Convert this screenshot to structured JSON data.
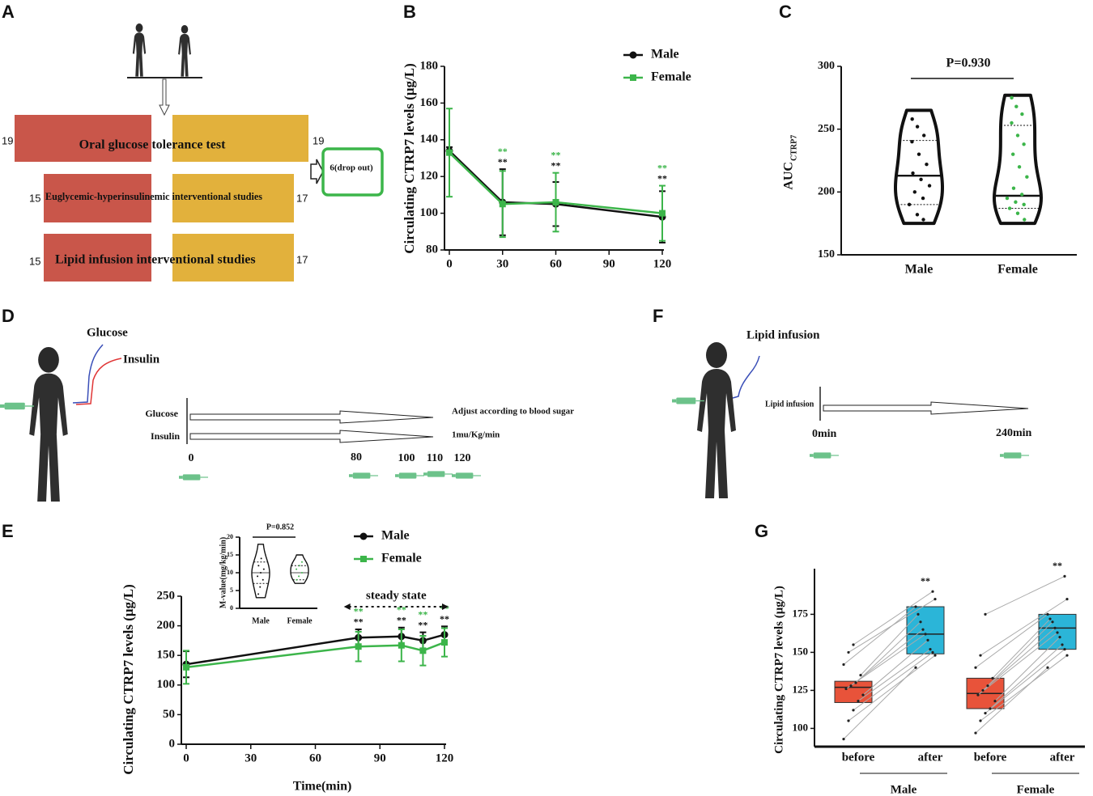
{
  "panel_labels": [
    "A",
    "B",
    "C",
    "D",
    "E",
    "F",
    "G"
  ],
  "diagram_a": {
    "rows": [
      {
        "label": "Oral glucose tolerance test",
        "left": 19,
        "right": 19
      },
      {
        "label": "Euglycemic-hyperinsulinemic interventional studies",
        "left": 15,
        "right": 17
      },
      {
        "label": "Lipid infusion interventional studies",
        "left": 15,
        "right": 17
      }
    ],
    "dropout": "6(drop out)"
  },
  "diagram_d": {
    "curve_labels": [
      "Glucose",
      "Insulin"
    ],
    "arrows": [
      {
        "label": "Glucose",
        "note": "Adjust according to blood sugar"
      },
      {
        "label": "Insulin",
        "note": "1mu/Kg/min"
      }
    ],
    "times": [
      0,
      80,
      100,
      110,
      120
    ]
  },
  "diagram_f": {
    "curve_label": "Lipid infusion",
    "arrow_label": "Lipid infusion",
    "start": "0min",
    "end": "240min"
  },
  "chart_data": [
    {
      "type": "line",
      "ylabel": "Circulating CTRP7 levels (μg/L)",
      "x": [
        0,
        30,
        60,
        120
      ],
      "xlim": [
        0,
        120
      ],
      "xticks": [
        0,
        30,
        60,
        90,
        120
      ],
      "ylim": [
        80,
        180
      ],
      "yticks": [
        80,
        100,
        120,
        140,
        160,
        180
      ],
      "legend": "top-right",
      "series": [
        {
          "name": "Male",
          "color": "#111111",
          "marker": "circle",
          "values": [
            134,
            106,
            105,
            98
          ],
          "errors": [
            2,
            18,
            12,
            14
          ],
          "significance": [
            null,
            "**",
            "**",
            "**"
          ]
        },
        {
          "name": "Female",
          "color": "#3cb54a",
          "marker": "square",
          "values": [
            133,
            105,
            106,
            100
          ],
          "errors": [
            24,
            18,
            16,
            15
          ],
          "significance": [
            null,
            "**",
            "**",
            "**"
          ]
        }
      ]
    },
    {
      "type": "violin",
      "ylabel": "AUC",
      "ylabel_sub": "CTRP7",
      "categories": [
        "Male",
        "Female"
      ],
      "colors": [
        "#111111",
        "#3cb54a"
      ],
      "ylim": [
        150,
        300
      ],
      "yticks": [
        150,
        200,
        250,
        300
      ],
      "p_value": "P=0.930",
      "groups": [
        {
          "range": [
            175,
            265
          ],
          "median": 213,
          "quartiles": [
            190,
            241
          ],
          "points": [
            258,
            252,
            245,
            240,
            230,
            222,
            215,
            210,
            205,
            200,
            195,
            190,
            182,
            178
          ]
        },
        {
          "range": [
            175,
            277
          ],
          "median": 197,
          "quartiles": [
            187,
            253
          ],
          "points": [
            275,
            268,
            262,
            255,
            245,
            238,
            230,
            220,
            212,
            203,
            198,
            195,
            192,
            190,
            187,
            183,
            178
          ]
        }
      ]
    },
    {
      "type": "line",
      "ylabel": "Circulating CTRP7 levels (μg/L)",
      "xlabel": "Time(min)",
      "steady_state": "steady state",
      "x": [
        0,
        80,
        100,
        110,
        120
      ],
      "xlim": [
        0,
        120
      ],
      "xticks": [
        0,
        30,
        60,
        90,
        120
      ],
      "ylim": [
        0,
        250
      ],
      "yticks": [
        0,
        50,
        100,
        150,
        200,
        250
      ],
      "legend": "top-right",
      "series": [
        {
          "name": "Male",
          "color": "#111111",
          "marker": "circle",
          "values": [
            135,
            180,
            182,
            175,
            185
          ],
          "errors": [
            22,
            14,
            15,
            14,
            14
          ],
          "significance": [
            null,
            "**",
            "**",
            "**",
            "**"
          ]
        },
        {
          "name": "Female",
          "color": "#3cb54a",
          "marker": "square",
          "values": [
            130,
            165,
            167,
            158,
            172
          ],
          "errors": [
            28,
            25,
            27,
            25,
            24
          ],
          "significance": [
            null,
            "**",
            "**",
            "**",
            "**"
          ]
        }
      ]
    },
    {
      "type": "violin",
      "ylabel": "M-value(mg/kg/min)",
      "categories": [
        "Male",
        "Female"
      ],
      "colors": [
        "#111111",
        "#3cb54a"
      ],
      "ylim": [
        0,
        20
      ],
      "yticks": [
        0,
        5,
        10,
        15,
        20
      ],
      "p_value": "P=0.852",
      "groups": [
        {
          "range": [
            3,
            18
          ],
          "median": 10,
          "quartiles": [
            7,
            13
          ],
          "points": [
            4,
            6,
            8,
            9,
            10,
            11,
            12,
            14
          ]
        },
        {
          "range": [
            7,
            15
          ],
          "median": 10,
          "quartiles": [
            8,
            12
          ],
          "points": [
            8,
            9,
            10,
            11,
            12,
            13
          ]
        }
      ]
    },
    {
      "type": "box",
      "ylabel": "Circulating CTRP7 levels (μg/L)",
      "categories": [
        "before",
        "after",
        "before",
        "after"
      ],
      "colors": [
        "#e8533a",
        "#2bb5d8",
        "#e8533a",
        "#2bb5d8"
      ],
      "ylim": [
        88,
        205
      ],
      "yticks": [
        100,
        125,
        150,
        175
      ],
      "boxes": [
        {
          "quartiles": [
            117,
            131
          ],
          "median": 127
        },
        {
          "quartiles": [
            149,
            180
          ],
          "median": 162
        },
        {
          "quartiles": [
            113,
            133
          ],
          "median": 123
        },
        {
          "quartiles": [
            152,
            175
          ],
          "median": 166
        }
      ],
      "significance": [
        null,
        "**",
        null,
        "**"
      ],
      "groups": [
        {
          "name": "Male",
          "before": [
            93,
            105,
            112,
            118,
            122,
            126,
            128,
            130,
            135,
            142,
            150,
            155
          ],
          "after": [
            140,
            148,
            150,
            152,
            158,
            162,
            165,
            170,
            175,
            180,
            185,
            190
          ]
        },
        {
          "name": "Female",
          "before": [
            97,
            105,
            110,
            113,
            118,
            122,
            125,
            128,
            133,
            140,
            148,
            175
          ],
          "after": [
            140,
            148,
            152,
            155,
            160,
            163,
            166,
            170,
            172,
            175,
            185,
            200
          ]
        }
      ]
    }
  ]
}
